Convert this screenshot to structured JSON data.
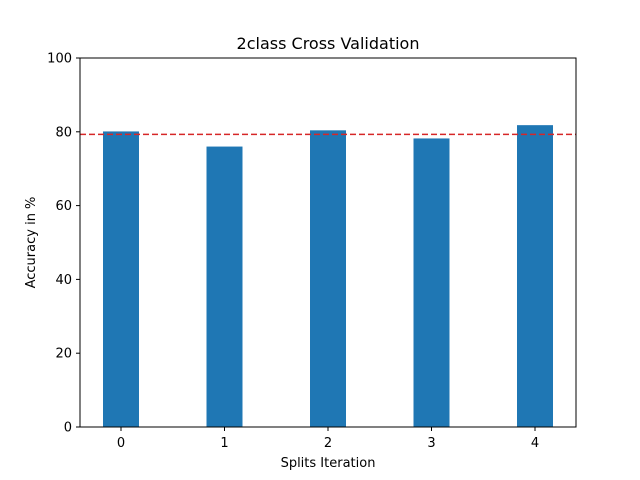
{
  "chart_data": {
    "type": "bar",
    "title": "2class Cross Validation",
    "xlabel": "Splits Iteration",
    "ylabel": "Accuracy in %",
    "categories": [
      "0",
      "1",
      "2",
      "3",
      "4"
    ],
    "values": [
      80.1,
      76.0,
      80.4,
      78.2,
      81.8
    ],
    "ylim": [
      0,
      100
    ],
    "yticks": [
      "0",
      "20",
      "40",
      "60",
      "80",
      "100"
    ],
    "mean_line": 79.3,
    "grid": false,
    "colors": {
      "bar": "#1f77b4",
      "mean_line": "#d62728",
      "axis": "#000000"
    }
  }
}
